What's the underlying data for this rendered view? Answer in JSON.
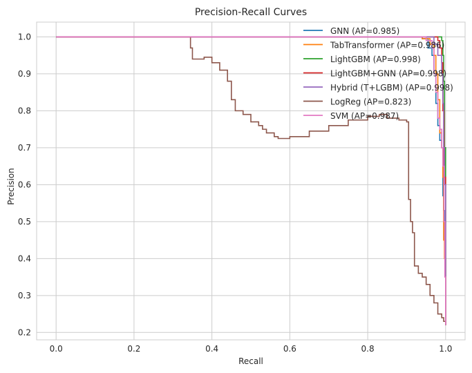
{
  "chart_data": {
    "type": "line",
    "title": "Precision-Recall Curves",
    "xlabel": "Recall",
    "ylabel": "Precision",
    "xlim": [
      -0.05,
      1.05
    ],
    "ylim": [
      0.18,
      1.04
    ],
    "xticks": [
      0.0,
      0.2,
      0.4,
      0.6,
      0.8,
      1.0
    ],
    "xtick_labels": [
      "0.0",
      "0.2",
      "0.4",
      "0.6",
      "0.8",
      "1.0"
    ],
    "yticks": [
      0.2,
      0.3,
      0.4,
      0.5,
      0.6,
      0.7,
      0.8,
      0.9,
      1.0
    ],
    "ytick_labels": [
      "0.2",
      "0.3",
      "0.4",
      "0.5",
      "0.6",
      "0.7",
      "0.8",
      "0.9",
      "1.0"
    ],
    "grid": true,
    "legend_position": "top-right",
    "series": [
      {
        "name": "GNN (AP=0.985)",
        "color": "#1f77b4",
        "x": [
          0.0,
          0.9,
          0.94,
          0.955,
          0.965,
          0.97,
          0.975,
          0.98,
          0.985,
          0.99,
          0.993,
          0.995,
          0.997,
          1.0
        ],
        "y": [
          1.0,
          1.0,
          0.995,
          0.97,
          0.95,
          0.9,
          0.82,
          0.76,
          0.72,
          0.7,
          0.57,
          0.53,
          0.45,
          0.22
        ]
      },
      {
        "name": "TabTransformer (AP=0.986)",
        "color": "#ff7f0e",
        "x": [
          0.0,
          0.9,
          0.94,
          0.96,
          0.97,
          0.975,
          0.98,
          0.985,
          0.99,
          0.993,
          0.995,
          0.997,
          1.0
        ],
        "y": [
          1.0,
          1.0,
          0.995,
          0.98,
          0.95,
          0.9,
          0.83,
          0.74,
          0.7,
          0.62,
          0.45,
          0.4,
          0.22
        ]
      },
      {
        "name": "LightGBM (AP=0.998)",
        "color": "#2ca02c",
        "x": [
          0.0,
          0.98,
          0.99,
          0.993,
          0.995,
          0.997,
          1.0
        ],
        "y": [
          1.0,
          1.0,
          0.99,
          0.95,
          0.88,
          0.7,
          0.22
        ]
      },
      {
        "name": "LightGBM+GNN (AP=0.998)",
        "color": "#d62728",
        "x": [
          0.0,
          0.97,
          0.98,
          0.985,
          0.99,
          0.993,
          0.996,
          1.0
        ],
        "y": [
          1.0,
          1.0,
          0.99,
          0.97,
          0.93,
          0.8,
          0.62,
          0.22
        ]
      },
      {
        "name": "Hybrid (T+LGBM) (AP=0.998)",
        "color": "#9467bd",
        "x": [
          0.0,
          0.95,
          0.97,
          0.98,
          0.99,
          0.993,
          0.995,
          0.997,
          1.0
        ],
        "y": [
          1.0,
          1.0,
          0.98,
          0.95,
          0.9,
          0.82,
          0.7,
          0.6,
          0.22
        ]
      },
      {
        "name": "LogReg (AP=0.823)",
        "color": "#8c564b",
        "x": [
          0.0,
          0.34,
          0.345,
          0.35,
          0.36,
          0.38,
          0.4,
          0.42,
          0.44,
          0.45,
          0.46,
          0.48,
          0.5,
          0.52,
          0.53,
          0.54,
          0.55,
          0.56,
          0.57,
          0.6,
          0.65,
          0.7,
          0.75,
          0.8,
          0.83,
          0.85,
          0.88,
          0.9,
          0.905,
          0.91,
          0.915,
          0.92,
          0.93,
          0.94,
          0.95,
          0.96,
          0.97,
          0.98,
          0.99,
          0.995,
          1.0
        ],
        "y": [
          1.0,
          1.0,
          0.97,
          0.94,
          0.94,
          0.945,
          0.93,
          0.91,
          0.88,
          0.83,
          0.8,
          0.79,
          0.77,
          0.76,
          0.75,
          0.74,
          0.74,
          0.73,
          0.725,
          0.73,
          0.745,
          0.76,
          0.775,
          0.785,
          0.79,
          0.78,
          0.775,
          0.77,
          0.56,
          0.5,
          0.47,
          0.38,
          0.36,
          0.35,
          0.33,
          0.3,
          0.28,
          0.25,
          0.24,
          0.23,
          0.22
        ]
      },
      {
        "name": "SVM (AP=0.987)",
        "color": "#e377c2",
        "x": [
          0.0,
          0.92,
          0.95,
          0.965,
          0.97,
          0.975,
          0.98,
          0.985,
          0.99,
          0.993,
          0.996,
          0.998,
          1.0
        ],
        "y": [
          1.0,
          1.0,
          0.99,
          0.97,
          0.9,
          0.85,
          0.78,
          0.75,
          0.7,
          0.65,
          0.5,
          0.35,
          0.22
        ]
      }
    ]
  }
}
